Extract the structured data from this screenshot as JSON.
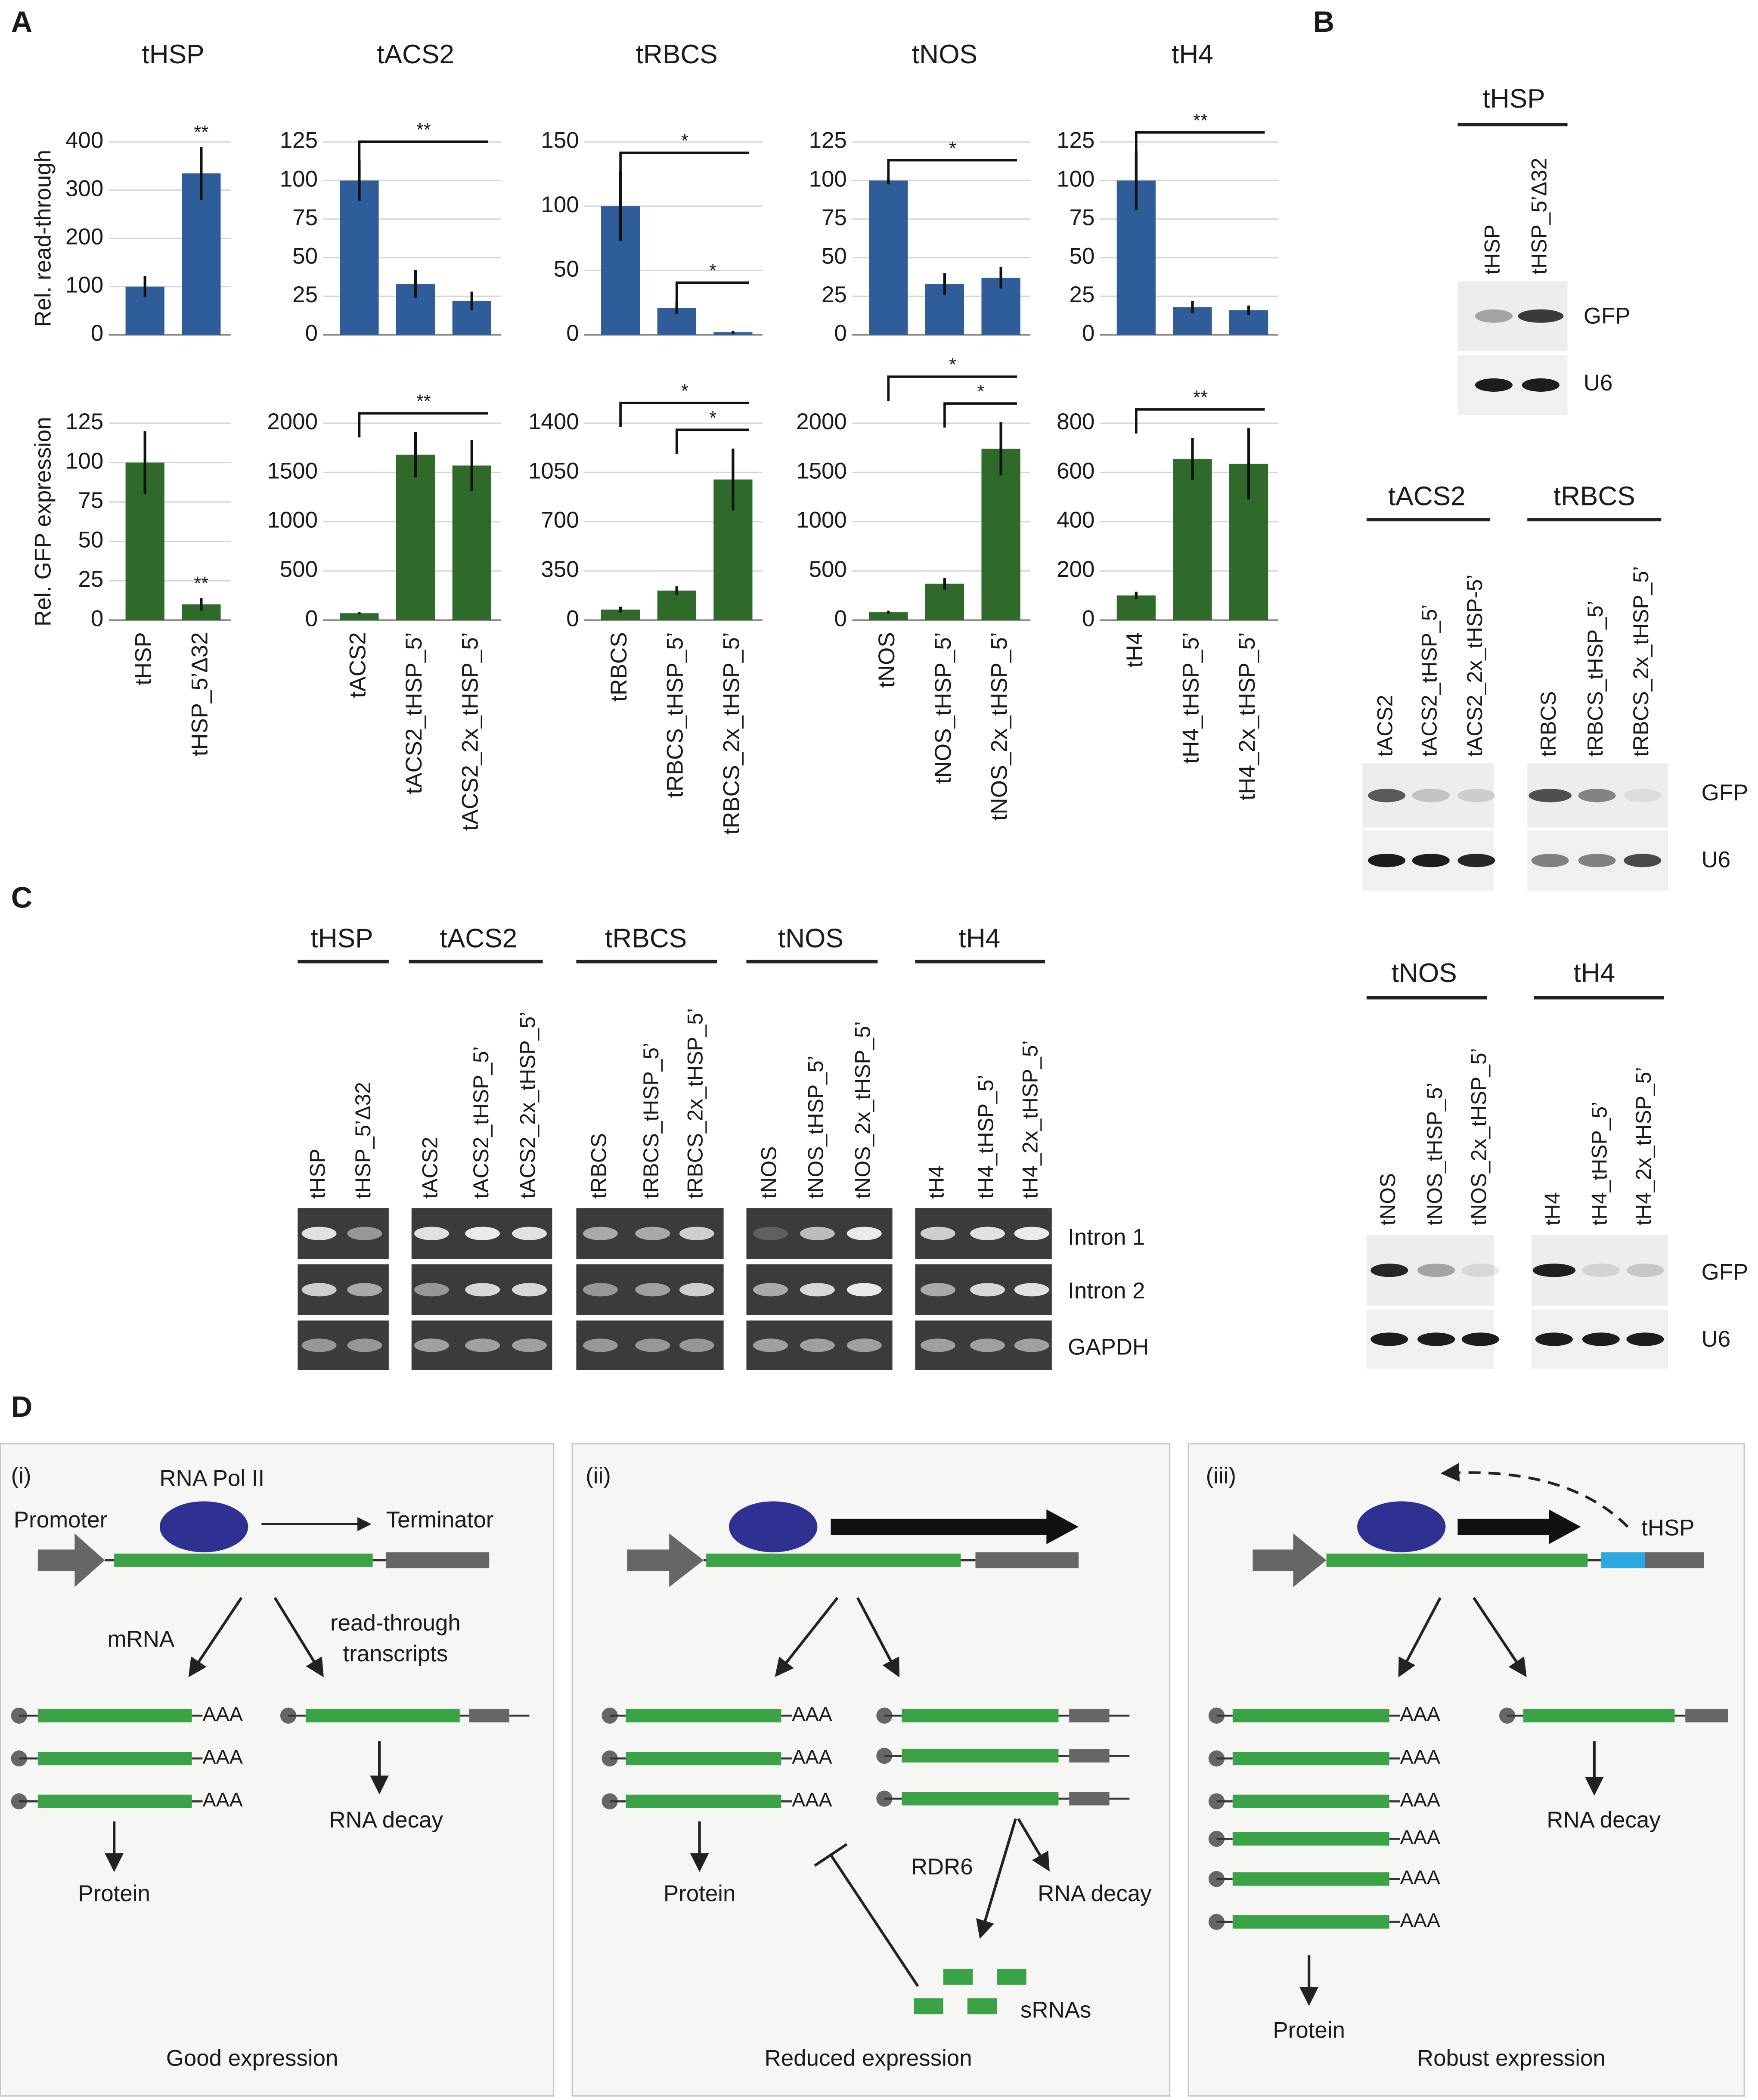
{
  "panel_labels": [
    "A",
    "B",
    "C",
    "D"
  ],
  "chart_data": [
    {
      "type": "bar",
      "title": "tHSP",
      "ylabel": "Rel. read-through",
      "color": "#2e5d99",
      "ylim": [
        0,
        400
      ],
      "yticks": [
        0,
        100,
        200,
        300,
        400
      ],
      "grid": true,
      "values": [
        100,
        335
      ],
      "errors": [
        22,
        55
      ],
      "significance": [
        {
          "bar": 1,
          "label": "**"
        }
      ]
    },
    {
      "type": "bar",
      "title": "tACS2",
      "color": "#2e5d99",
      "ylim": [
        0,
        125
      ],
      "yticks": [
        0,
        25,
        50,
        75,
        100,
        125
      ],
      "grid": true,
      "values": [
        100,
        33,
        22
      ],
      "errors": [
        13,
        9,
        6
      ],
      "significance": [
        {
          "from": 0,
          "to": 2,
          "label": "**"
        }
      ]
    },
    {
      "type": "bar",
      "title": "tRBCS",
      "color": "#2e5d99",
      "ylim": [
        0,
        150
      ],
      "yticks": [
        0,
        50,
        100,
        150
      ],
      "grid": true,
      "values": [
        100,
        21,
        2
      ],
      "errors": [
        27,
        5,
        1
      ],
      "significance": [
        {
          "from": 0,
          "to": 2,
          "label": "*"
        },
        {
          "from": 1,
          "to": 2,
          "label": "*"
        }
      ]
    },
    {
      "type": "bar",
      "title": "tNOS",
      "color": "#2e5d99",
      "ylim": [
        0,
        125
      ],
      "yticks": [
        0,
        25,
        50,
        75,
        100,
        125
      ],
      "grid": true,
      "values": [
        100,
        33,
        37
      ],
      "errors": [
        1,
        7,
        7
      ],
      "significance": [
        {
          "from": 0,
          "to": 2,
          "label": "*"
        }
      ]
    },
    {
      "type": "bar",
      "title": "tH4",
      "color": "#2e5d99",
      "ylim": [
        0,
        125
      ],
      "yticks": [
        0,
        25,
        50,
        75,
        100,
        125
      ],
      "grid": true,
      "values": [
        100,
        18,
        16
      ],
      "errors": [
        19,
        4,
        3
      ],
      "significance": [
        {
          "from": 0,
          "to": 2,
          "label": "**"
        }
      ]
    },
    {
      "type": "bar",
      "ylabel": "Rel. GFP expression",
      "color": "#2f6a2a",
      "ylim": [
        0,
        125
      ],
      "yticks": [
        0,
        25,
        50,
        75,
        100,
        125
      ],
      "grid": true,
      "categories": [
        "tHSP",
        "tHSP_5’Δ32"
      ],
      "values": [
        100,
        10
      ],
      "errors": [
        20,
        4
      ],
      "significance": [
        {
          "bar": 1,
          "label": "**"
        }
      ]
    },
    {
      "type": "bar",
      "color": "#2f6a2a",
      "ylim": [
        0,
        2000
      ],
      "yticks": [
        0,
        500,
        1000,
        1500,
        2000
      ],
      "grid": true,
      "categories": [
        "tACS2",
        "tACS2_tHSP_5’",
        "tACS2_2x_tHSP_5’"
      ],
      "values": [
        70,
        1680,
        1570
      ],
      "errors": [
        10,
        230,
        260
      ],
      "significance": [
        {
          "from": 0,
          "to": 2,
          "label": "**"
        }
      ]
    },
    {
      "type": "bar",
      "color": "#2f6a2a",
      "ylim": [
        0,
        1400
      ],
      "yticks": [
        0,
        350,
        700,
        1050,
        1400
      ],
      "grid": true,
      "categories": [
        "tRBCS",
        "tRBCS_tHSP_5’",
        "tRBCS_2x_tHSP_5’"
      ],
      "values": [
        75,
        210,
        1000
      ],
      "errors": [
        20,
        30,
        220
      ],
      "significance": [
        {
          "from": 0,
          "to": 2,
          "label": "*"
        },
        {
          "from": 1,
          "to": 2,
          "label": "*"
        }
      ]
    },
    {
      "type": "bar",
      "color": "#2f6a2a",
      "ylim": [
        0,
        2000
      ],
      "yticks": [
        0,
        500,
        1000,
        1500,
        2000
      ],
      "grid": true,
      "categories": [
        "tNOS",
        "tNOS_tHSP_5’",
        "tNOS_2x_tHSP_5’"
      ],
      "values": [
        80,
        370,
        1740
      ],
      "errors": [
        15,
        60,
        270
      ],
      "significance": [
        {
          "from": 0,
          "to": 2,
          "label": "*"
        },
        {
          "from": 1,
          "to": 2,
          "label": "*"
        }
      ]
    },
    {
      "type": "bar",
      "color": "#2f6a2a",
      "ylim": [
        0,
        800
      ],
      "yticks": [
        0,
        200,
        400,
        600,
        800
      ],
      "grid": true,
      "categories": [
        "tH4",
        "tH4_tHSP_5’",
        "tH4_2x_tHSP_5’"
      ],
      "values": [
        100,
        655,
        635
      ],
      "errors": [
        15,
        85,
        145
      ],
      "significance": [
        {
          "from": 0,
          "to": 2,
          "label": "**"
        }
      ]
    }
  ],
  "panel_b": {
    "sections": [
      {
        "groups": [
          {
            "title": "tHSP",
            "lanes": [
              "tHSP",
              "tHSP_5’Δ32"
            ]
          }
        ],
        "rows": [
          "GFP",
          "U6"
        ]
      },
      {
        "groups": [
          {
            "title": "tACS2",
            "lanes": [
              "tACS2",
              "tACS2_tHSP_5’",
              "tACS2_2x_tHSP-5’"
            ]
          },
          {
            "title": "tRBCS",
            "lanes": [
              "tRBCS",
              "tRBCS_tHSP_5’",
              "tRBCS_2x_tHSP_5’"
            ]
          }
        ],
        "rows": [
          "GFP",
          "U6"
        ]
      },
      {
        "groups": [
          {
            "title": "tNOS",
            "lanes": [
              "tNOS",
              "tNOS_tHSP_5’",
              "tNOS_2x_tHSP_5’"
            ]
          },
          {
            "title": "tH4",
            "lanes": [
              "tH4",
              "tH4_tHSP_5’",
              "tH4_2x_tHSP_5’"
            ]
          }
        ],
        "rows": [
          "GFP",
          "U6"
        ]
      }
    ]
  },
  "panel_c": {
    "groups": [
      {
        "title": "tHSP",
        "lanes": [
          "tHSP",
          "tHSP_5’Δ32"
        ]
      },
      {
        "title": "tACS2",
        "lanes": [
          "tACS2",
          "tACS2_tHSP_5’",
          "tACS2_2x_tHSP_5’"
        ]
      },
      {
        "title": "tRBCS",
        "lanes": [
          "tRBCS",
          "tRBCS_tHSP_5’",
          "tRBCS_2x_tHSP_5’"
        ]
      },
      {
        "title": "tNOS",
        "lanes": [
          "tNOS",
          "tNOS_tHSP_5’",
          "tNOS_2x_tHSP_5’"
        ]
      },
      {
        "title": "tH4",
        "lanes": [
          "tH4",
          "tH4_tHSP_5’",
          "tH4_2x_tHSP_5’"
        ]
      }
    ],
    "rows": [
      "Intron 1",
      "Intron 2",
      "GAPDH"
    ]
  },
  "panel_d": {
    "poly_a": "AAA",
    "diagrams": [
      {
        "tag": "(i)",
        "polymerase": "RNA Pol II",
        "promoter": "Promoter",
        "terminator": "Terminator",
        "branch_left": "mRNA",
        "branch_right": [
          "read-through",
          "transcripts"
        ],
        "decay": "RNA decay",
        "protein": "Protein",
        "caption": "Good expression"
      },
      {
        "tag": "(ii)",
        "protein": "Protein",
        "rdr": "RDR6",
        "decay": "RNA decay",
        "srnas": "sRNAs",
        "caption": "Reduced expression"
      },
      {
        "tag": "(iii)",
        "terminator": "tHSP",
        "decay": "RNA decay",
        "protein": "Protein",
        "caption": "Robust expression"
      }
    ]
  }
}
